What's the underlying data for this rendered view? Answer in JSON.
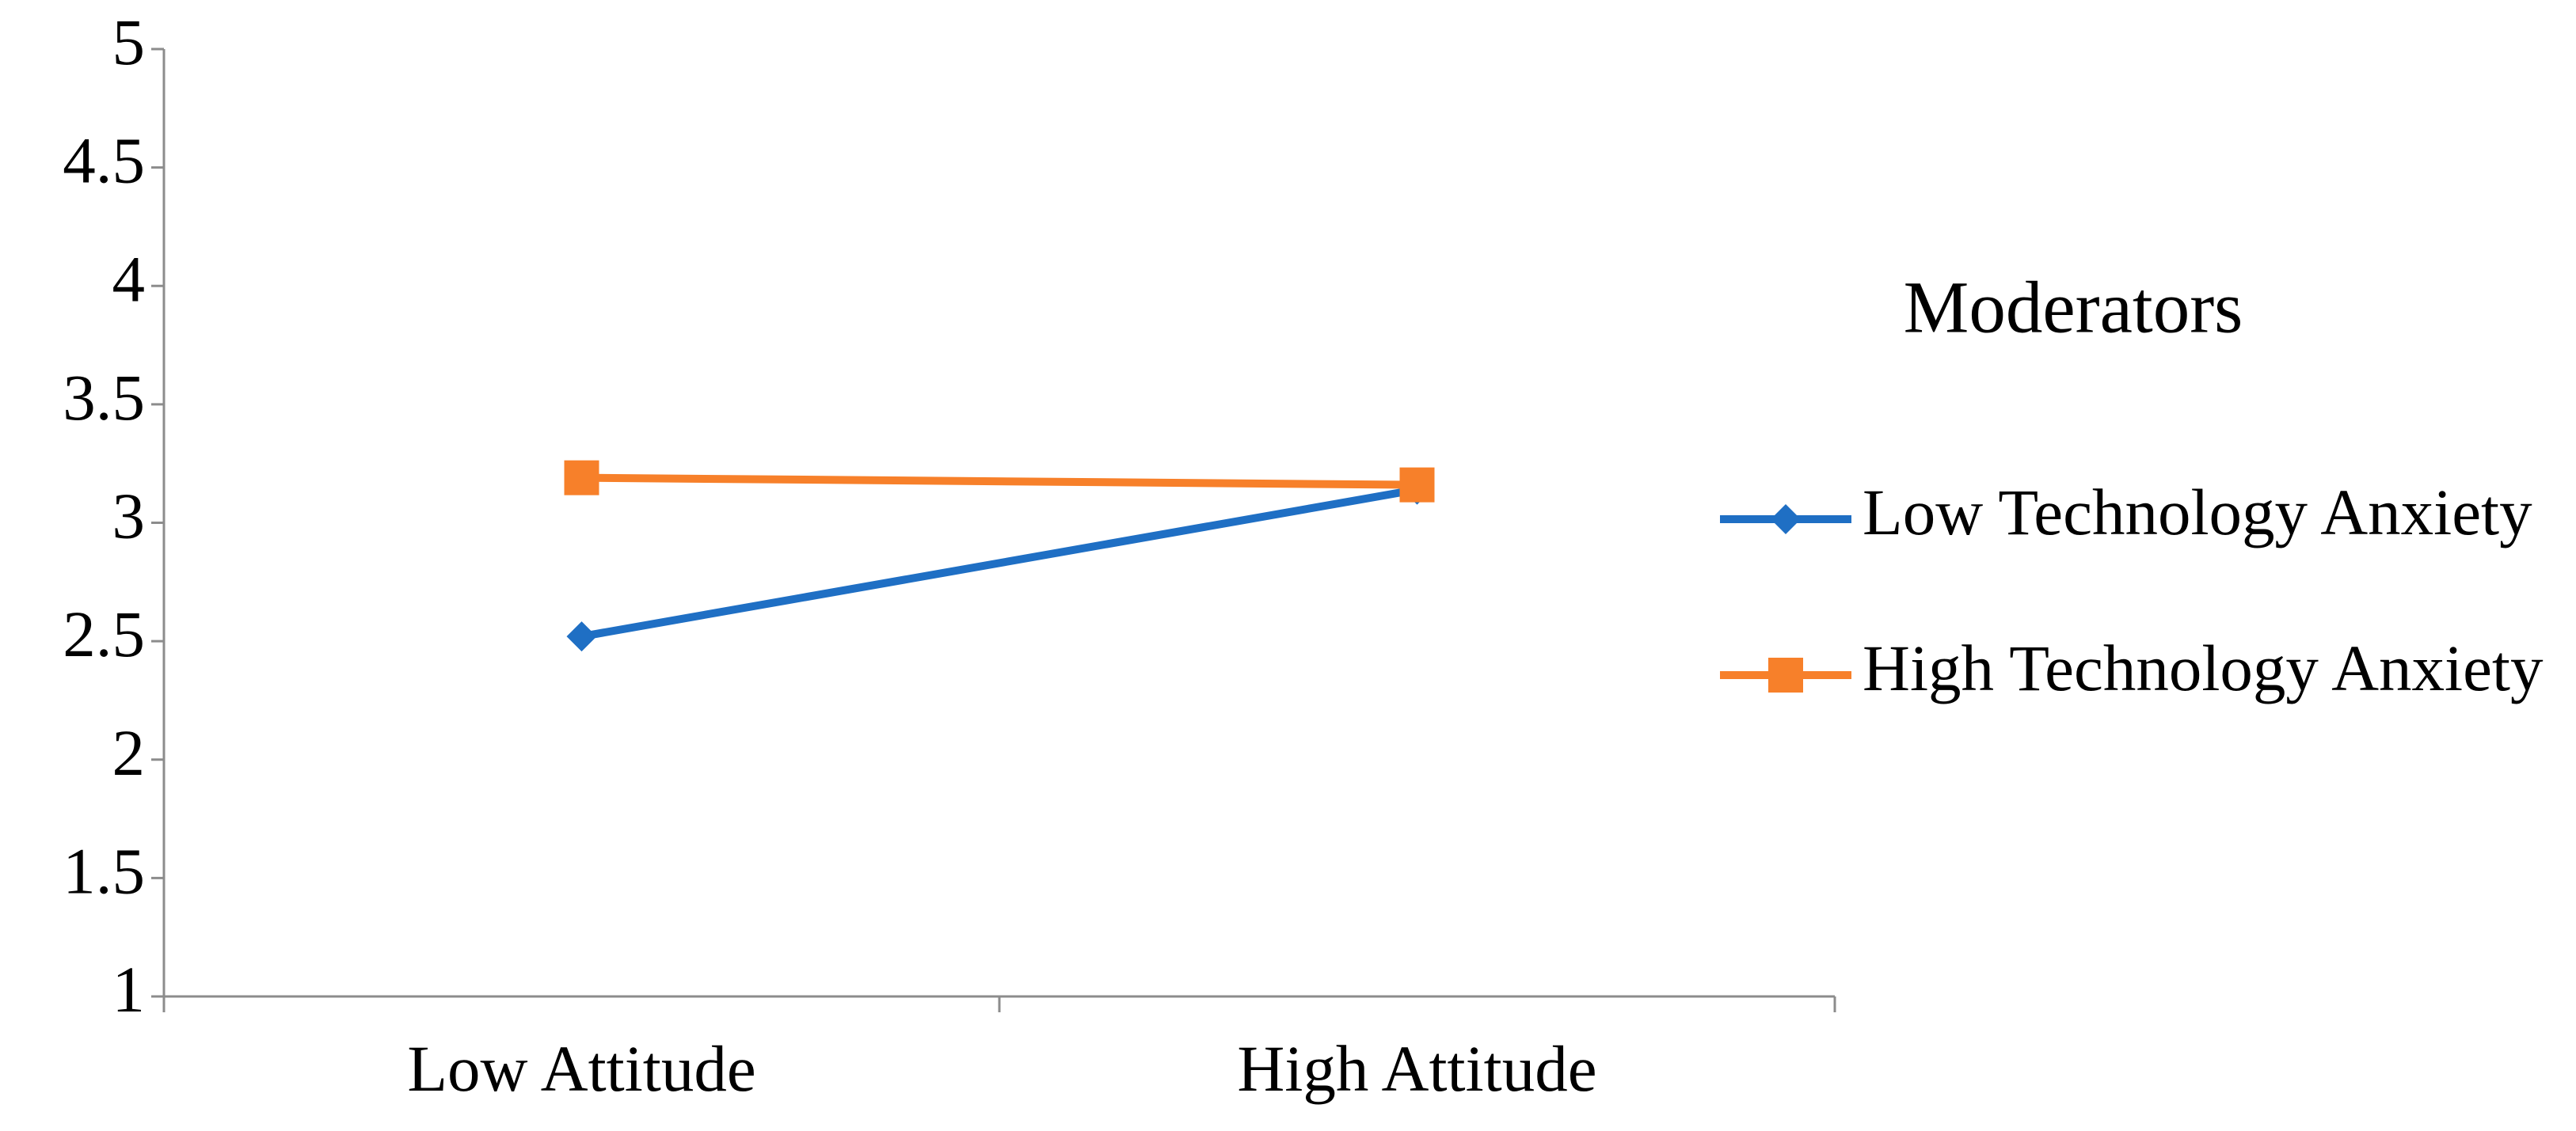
{
  "chart_data": {
    "type": "line",
    "categories": [
      "Low Attitude",
      "High Attitude"
    ],
    "series": [
      {
        "name": "Low Technology Anxiety",
        "color": "#1f6fc4",
        "marker": "diamond",
        "values": [
          2.52,
          3.14
        ]
      },
      {
        "name": "High Technology Anxiety",
        "color": "#f7802a",
        "marker": "square",
        "values": [
          3.19,
          3.16
        ]
      }
    ],
    "ylim": [
      1,
      5
    ],
    "yticks": [
      1,
      1.5,
      2,
      2.5,
      3,
      3.5,
      4,
      4.5,
      5
    ],
    "grid": false,
    "legend_title": "Moderators",
    "legend_position": "right"
  }
}
